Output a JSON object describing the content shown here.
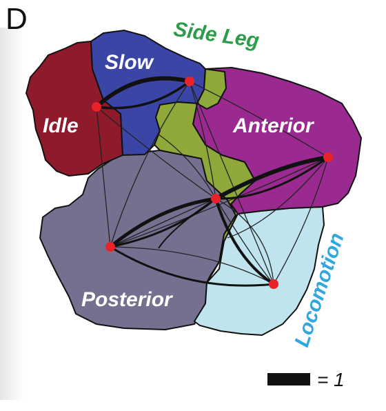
{
  "panel_letter": "D",
  "regions": {
    "slow": {
      "label": "Slow",
      "color": "#3a45a6"
    },
    "idle": {
      "label": "Idle",
      "color": "#8f1a2b"
    },
    "anterior": {
      "label": "Anterior",
      "color": "#9a2a8f"
    },
    "posterior": {
      "label": "Posterior",
      "color": "#757090"
    },
    "center": {
      "color": "#8ea83a"
    },
    "locomotion_region": {
      "color": "#bfe4ee"
    }
  },
  "outer_labels": {
    "side_leg": {
      "text": "Side Leg",
      "color": "#2e9b4a"
    },
    "locomotion": {
      "text": "Locomotion",
      "color": "#2fa8e0"
    }
  },
  "scale_bar": {
    "label": "= 1"
  },
  "node_color": "#e8232a"
}
